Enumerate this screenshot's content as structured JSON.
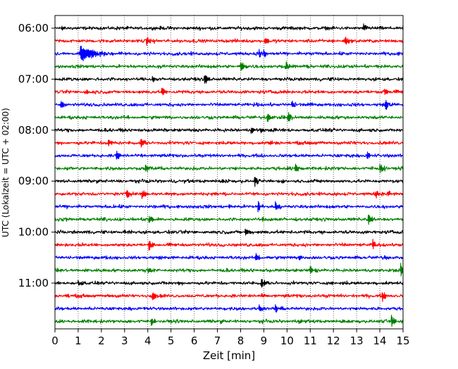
{
  "chart_data": {
    "type": "line",
    "title": "",
    "xlabel": "Zeit  [min]",
    "ylabel": "UTC (Lokalzeit = UTC + 02:00)",
    "xlim": [
      0,
      15
    ],
    "x_ticks": [
      0,
      1,
      2,
      3,
      4,
      5,
      6,
      7,
      8,
      9,
      10,
      11,
      12,
      13,
      14,
      15
    ],
    "x_grid": "dotted vertical at each minute",
    "y_tick_labels": [
      "06:00",
      "07:00",
      "08:00",
      "09:00",
      "10:00",
      "11:00"
    ],
    "traces_per_hour": 4,
    "trace_interval_min": 15,
    "color_cycle": [
      "#000000",
      "#ff0000",
      "#0000ff",
      "#008000"
    ],
    "traces": [
      {
        "start": "06:00",
        "color": "#000000",
        "events": [
          {
            "t": 0.3,
            "amp": 0.3
          },
          {
            "t": 13.3,
            "amp": 0.45
          },
          {
            "t": 15.0,
            "amp": 0.3
          }
        ]
      },
      {
        "start": "06:15",
        "color": "#ff0000",
        "events": [
          {
            "t": 3.95,
            "amp": 0.5
          },
          {
            "t": 9.05,
            "amp": 0.45
          },
          {
            "t": 12.5,
            "amp": 0.55
          }
        ]
      },
      {
        "start": "06:30",
        "color": "#0000ff",
        "events": [
          {
            "t": 1.1,
            "amp": 0.85,
            "dur": 0.6
          },
          {
            "t": 8.8,
            "amp": 0.45
          },
          {
            "t": 9.0,
            "amp": 0.3
          }
        ]
      },
      {
        "start": "06:45",
        "color": "#008000",
        "events": [
          {
            "t": 8.0,
            "amp": 0.7
          },
          {
            "t": 9.95,
            "amp": 0.55
          }
        ]
      },
      {
        "start": "07:00",
        "color": "#000000",
        "events": [
          {
            "t": 6.45,
            "amp": 0.7
          },
          {
            "t": 4.2,
            "amp": 0.25
          }
        ]
      },
      {
        "start": "07:15",
        "color": "#ff0000",
        "events": [
          {
            "t": 1.3,
            "amp": 0.35
          },
          {
            "t": 4.6,
            "amp": 0.6
          },
          {
            "t": 14.2,
            "amp": 0.55
          }
        ]
      },
      {
        "start": "07:30",
        "color": "#0000ff",
        "events": [
          {
            "t": 0.25,
            "amp": 0.55
          },
          {
            "t": 10.2,
            "amp": 0.4
          },
          {
            "t": 14.25,
            "amp": 0.7
          }
        ]
      },
      {
        "start": "07:45",
        "color": "#008000",
        "events": [
          {
            "t": 9.15,
            "amp": 0.55
          },
          {
            "t": 10.05,
            "amp": 0.65
          }
        ]
      },
      {
        "start": "08:00",
        "color": "#000000",
        "events": [
          {
            "t": 8.45,
            "amp": 0.45
          },
          {
            "t": 8.85,
            "amp": 0.3
          }
        ]
      },
      {
        "start": "08:15",
        "color": "#ff0000",
        "events": [
          {
            "t": 2.3,
            "amp": 0.45
          },
          {
            "t": 3.7,
            "amp": 0.5
          },
          {
            "t": 9.2,
            "amp": 0.3
          }
        ]
      },
      {
        "start": "08:30",
        "color": "#0000ff",
        "events": [
          {
            "t": 2.65,
            "amp": 0.5
          },
          {
            "t": 13.45,
            "amp": 0.45
          }
        ]
      },
      {
        "start": "08:45",
        "color": "#008000",
        "events": [
          {
            "t": 3.9,
            "amp": 0.35
          },
          {
            "t": 10.35,
            "amp": 0.55
          },
          {
            "t": 14.0,
            "amp": 0.6
          }
        ]
      },
      {
        "start": "09:00",
        "color": "#000000",
        "events": [
          {
            "t": 8.6,
            "amp": 0.6
          },
          {
            "t": 7.2,
            "amp": 0.25
          }
        ]
      },
      {
        "start": "09:15",
        "color": "#ff0000",
        "events": [
          {
            "t": 3.1,
            "amp": 0.55
          },
          {
            "t": 3.75,
            "amp": 0.55
          },
          {
            "t": 13.8,
            "amp": 0.45
          },
          {
            "t": 14.35,
            "amp": 0.45
          }
        ]
      },
      {
        "start": "09:30",
        "color": "#0000ff",
        "events": [
          {
            "t": 7.5,
            "amp": 0.3
          },
          {
            "t": 8.75,
            "amp": 0.6
          },
          {
            "t": 9.5,
            "amp": 0.6
          }
        ]
      },
      {
        "start": "09:45",
        "color": "#008000",
        "events": [
          {
            "t": 4.05,
            "amp": 0.4
          },
          {
            "t": 8.95,
            "amp": 0.3
          },
          {
            "t": 13.5,
            "amp": 0.6
          }
        ]
      },
      {
        "start": "10:00",
        "color": "#000000",
        "events": [
          {
            "t": 8.2,
            "amp": 0.45
          },
          {
            "t": 3.0,
            "amp": 0.25
          }
        ]
      },
      {
        "start": "10:15",
        "color": "#ff0000",
        "events": [
          {
            "t": 4.05,
            "amp": 0.75
          },
          {
            "t": 13.7,
            "amp": 0.55
          }
        ]
      },
      {
        "start": "10:30",
        "color": "#0000ff",
        "events": [
          {
            "t": 8.65,
            "amp": 0.5
          },
          {
            "t": 10.5,
            "amp": 0.4
          },
          {
            "t": 14.2,
            "amp": 0.3
          }
        ]
      },
      {
        "start": "10:45",
        "color": "#008000",
        "events": [
          {
            "t": 4.0,
            "amp": 0.35
          },
          {
            "t": 11.0,
            "amp": 0.45
          },
          {
            "t": 14.9,
            "amp": 0.75
          }
        ]
      },
      {
        "start": "11:00",
        "color": "#000000",
        "events": [
          {
            "t": 8.9,
            "amp": 0.55
          },
          {
            "t": 1.0,
            "amp": 0.25
          }
        ]
      },
      {
        "start": "11:15",
        "color": "#ff0000",
        "events": [
          {
            "t": 4.2,
            "amp": 0.6
          },
          {
            "t": 14.1,
            "amp": 0.55
          },
          {
            "t": 8.9,
            "amp": 0.3
          }
        ]
      },
      {
        "start": "11:30",
        "color": "#0000ff",
        "events": [
          {
            "t": 8.8,
            "amp": 0.55
          },
          {
            "t": 9.5,
            "amp": 0.45
          }
        ]
      },
      {
        "start": "11:45",
        "color": "#008000",
        "events": [
          {
            "t": 4.15,
            "amp": 0.4
          },
          {
            "t": 10.5,
            "amp": 0.3
          },
          {
            "t": 14.5,
            "amp": 0.75
          }
        ]
      }
    ]
  }
}
